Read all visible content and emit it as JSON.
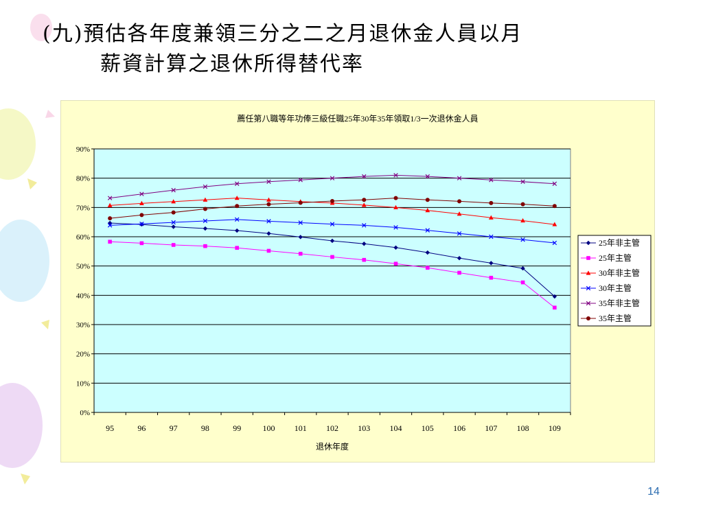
{
  "slide": {
    "title_line1": "(九)預估各年度兼領三分之二之月退休金人員以月",
    "title_line2": "薪資計算之退休所得替代率",
    "page_number": "14"
  },
  "chart_data": {
    "type": "line",
    "title": "薦任第八職等年功俸三級任職25年30年35年領取1/3一次退休金人員",
    "xlabel": "退休年度",
    "ylabel": "",
    "x": [
      "95",
      "96",
      "97",
      "98",
      "99",
      "100",
      "101",
      "102",
      "103",
      "104",
      "105",
      "106",
      "107",
      "108",
      "109"
    ],
    "ylim": [
      0,
      90
    ],
    "yticks": [
      "0%",
      "10%",
      "20%",
      "30%",
      "40%",
      "50%",
      "60%",
      "70%",
      "80%",
      "90%"
    ],
    "grid": true,
    "legend_position": "right",
    "plot_background": "#ccffff",
    "series": [
      {
        "name": "25年非主管",
        "color": "#000080",
        "marker": "diamond",
        "values": [
          64.7,
          64.2,
          63.4,
          62.8,
          62.1,
          61.1,
          59.9,
          58.6,
          57.6,
          56.3,
          54.6,
          52.7,
          51.0,
          49.2,
          39.6
        ]
      },
      {
        "name": "25年主管",
        "color": "#ff00ff",
        "marker": "square",
        "values": [
          58.3,
          57.8,
          57.2,
          56.8,
          56.2,
          55.2,
          54.2,
          53.1,
          52.1,
          50.8,
          49.4,
          47.7,
          46.0,
          44.4,
          35.8
        ]
      },
      {
        "name": "30年非主管",
        "color": "#ff0000",
        "marker": "triangle",
        "values": [
          70.7,
          71.4,
          72.0,
          72.6,
          73.2,
          72.6,
          72.0,
          71.5,
          70.8,
          70.0,
          69.0,
          67.8,
          66.5,
          65.5,
          64.2
        ]
      },
      {
        "name": "30年主管",
        "color": "#0000ff",
        "marker": "x",
        "values": [
          63.9,
          64.4,
          64.9,
          65.4,
          65.9,
          65.3,
          64.8,
          64.3,
          63.9,
          63.2,
          62.2,
          61.1,
          60.0,
          59.0,
          57.9
        ]
      },
      {
        "name": "35年非主管",
        "color": "#800080",
        "marker": "x",
        "values": [
          73.2,
          74.6,
          75.9,
          77.1,
          78.1,
          78.8,
          79.4,
          80.0,
          80.6,
          81.0,
          80.6,
          80.0,
          79.4,
          78.8,
          78.1
        ]
      },
      {
        "name": "35年主管",
        "color": "#800000",
        "marker": "circle",
        "values": [
          66.3,
          67.4,
          68.3,
          69.5,
          70.5,
          71.1,
          71.6,
          72.2,
          72.6,
          73.2,
          72.6,
          72.1,
          71.5,
          71.1,
          70.5
        ]
      }
    ]
  }
}
